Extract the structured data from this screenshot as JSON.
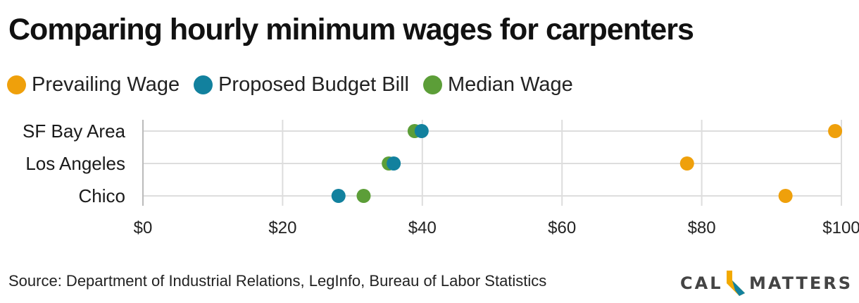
{
  "title": "Comparing hourly minimum wages for carpenters",
  "source": "Source: Department of Industrial Relations, LegInfo, Bureau of Labor Statistics",
  "logo": {
    "left": "CAL",
    "right": "MATTERS"
  },
  "colors": {
    "prevailing": "#EFA00B",
    "proposed": "#12819E",
    "median": "#5C9E38",
    "grid": "#DDDDDD",
    "text": "#1A1A1A"
  },
  "legend": [
    {
      "label": "Prevailing Wage",
      "color": "#EFA00B"
    },
    {
      "label": "Proposed Budget Bill",
      "color": "#12819E"
    },
    {
      "label": "Median Wage",
      "color": "#5C9E38"
    }
  ],
  "chart_data": {
    "type": "scatter",
    "title": "Comparing hourly minimum wages for carpenters",
    "xlabel": "",
    "ylabel": "",
    "xlim": [
      0,
      100
    ],
    "x_ticks": [
      0,
      20,
      40,
      60,
      80,
      100
    ],
    "x_tick_labels": [
      "$0",
      "$20",
      "$40",
      "$60",
      "$80",
      "$100"
    ],
    "categories": [
      "SF Bay Area",
      "Los Angeles",
      "Chico"
    ],
    "legend_position": "top-left",
    "grid": true,
    "series": [
      {
        "name": "Prevailing Wage",
        "color": "#EFA00B",
        "values": [
          99.1,
          77.9,
          92.0
        ]
      },
      {
        "name": "Proposed Budget Bill",
        "color": "#12819E",
        "values": [
          39.9,
          35.9,
          28.0
        ]
      },
      {
        "name": "Median Wage",
        "color": "#5C9E38",
        "values": [
          38.9,
          35.2,
          31.6
        ]
      }
    ]
  }
}
